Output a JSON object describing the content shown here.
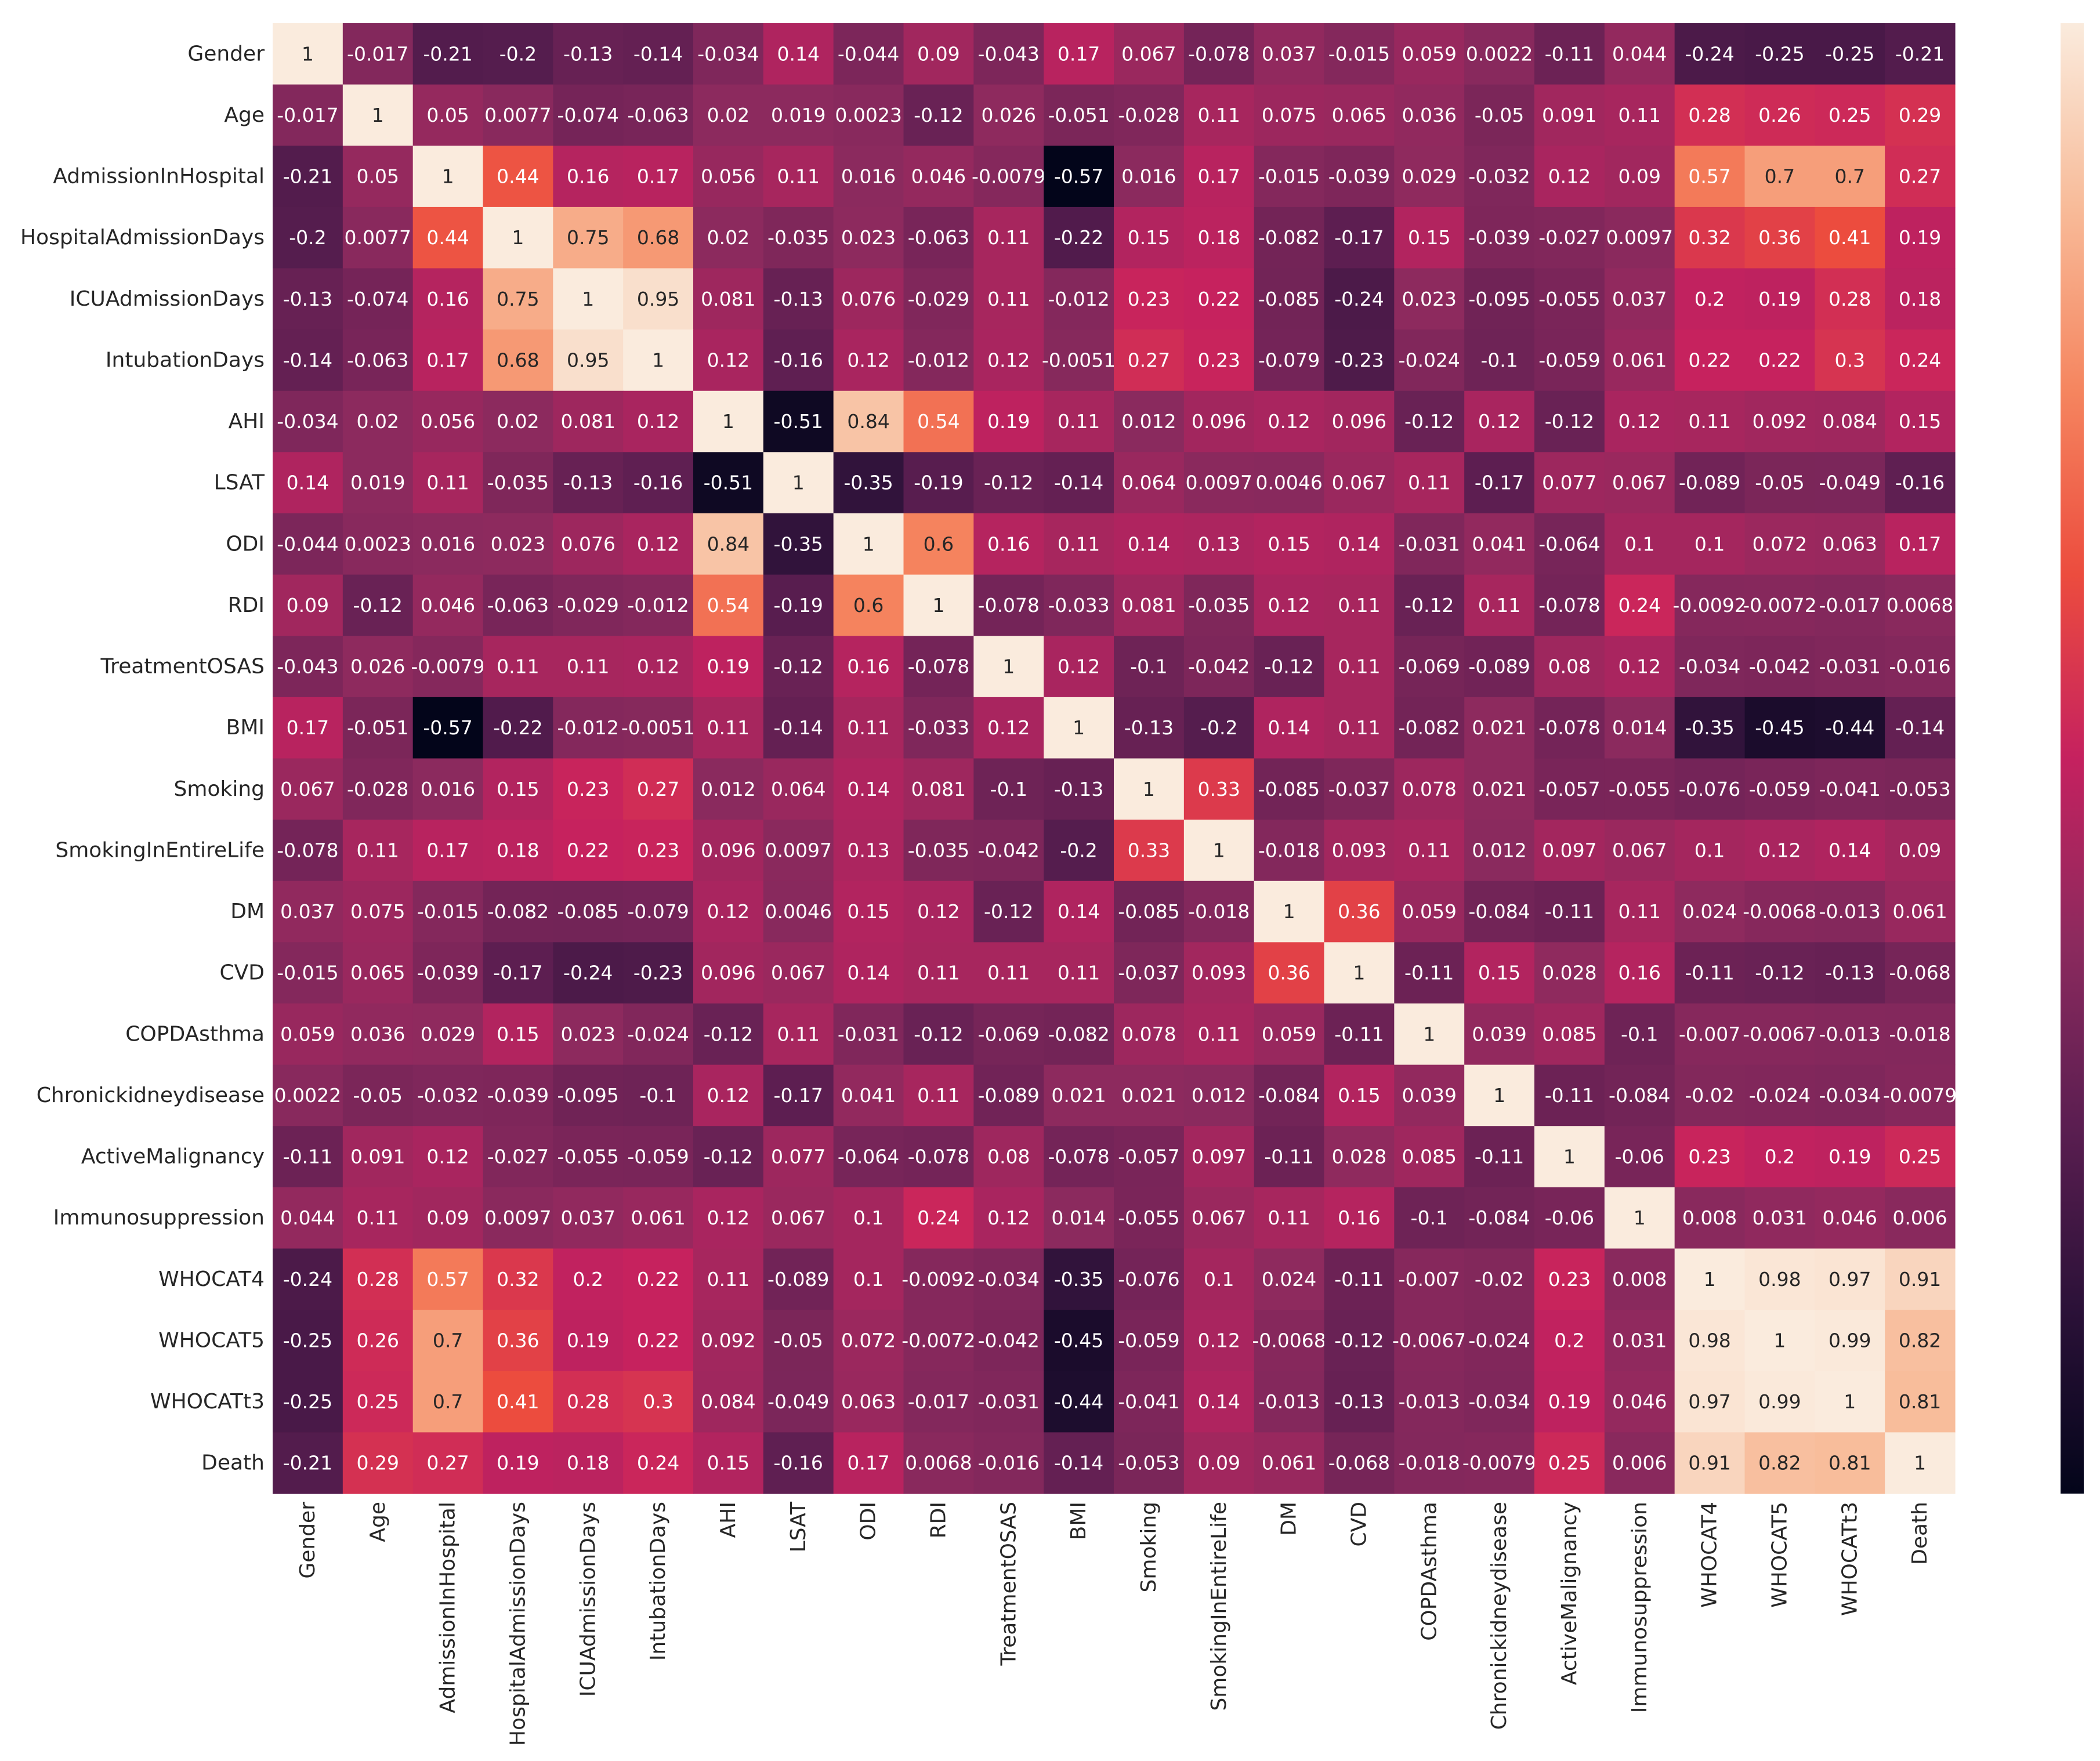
{
  "chart_data": {
    "type": "heatmap",
    "title": "",
    "xlabel": "",
    "ylabel": "",
    "colormap": "rocket",
    "vmin": -0.57,
    "vmax": 1,
    "labels": [
      "Gender",
      "Age",
      "AdmissionInHospital",
      "HospitalAdmissionDays",
      "ICUAdmissionDays",
      "IntubationDays",
      "AHI",
      "LSAT",
      "ODI",
      "RDI",
      "TreatmentOSAS",
      "BMI",
      "Smoking",
      "SmokingInEntireLife",
      "DM",
      "CVD",
      "COPDAsthma",
      "Chronickidneydisease",
      "ActiveMalignancy",
      "Immunosuppression",
      "WHOCAT4",
      "WHOCAT5",
      "WHOCATt3",
      "Death"
    ],
    "values": [
      [
        "1",
        "-0.017",
        "-0.21",
        "-0.2",
        "-0.13",
        "-0.14",
        "-0.034",
        "0.14",
        "-0.044",
        "0.09",
        "-0.043",
        "0.17",
        "0.067",
        "-0.078",
        "0.037",
        "-0.015",
        "0.059",
        "0.0022",
        "-0.11",
        "0.044",
        "-0.24",
        "-0.25",
        "-0.25",
        "-0.21"
      ],
      [
        "-0.017",
        "1",
        "0.05",
        "0.0077",
        "-0.074",
        "-0.063",
        "0.02",
        "0.019",
        "0.0023",
        "-0.12",
        "0.026",
        "-0.051",
        "-0.028",
        "0.11",
        "0.075",
        "0.065",
        "0.036",
        "-0.05",
        "0.091",
        "0.11",
        "0.28",
        "0.26",
        "0.25",
        "0.29"
      ],
      [
        "-0.21",
        "0.05",
        "1",
        "0.44",
        "0.16",
        "0.17",
        "0.056",
        "0.11",
        "0.016",
        "0.046",
        "-0.0079",
        "-0.57",
        "0.016",
        "0.17",
        "-0.015",
        "-0.039",
        "0.029",
        "-0.032",
        "0.12",
        "0.09",
        "0.57",
        "0.7",
        "0.7",
        "0.27"
      ],
      [
        "-0.2",
        "0.0077",
        "0.44",
        "1",
        "0.75",
        "0.68",
        "0.02",
        "-0.035",
        "0.023",
        "-0.063",
        "0.11",
        "-0.22",
        "0.15",
        "0.18",
        "-0.082",
        "-0.17",
        "0.15",
        "-0.039",
        "-0.027",
        "0.0097",
        "0.32",
        "0.36",
        "0.41",
        "0.19"
      ],
      [
        "-0.13",
        "-0.074",
        "0.16",
        "0.75",
        "1",
        "0.95",
        "0.081",
        "-0.13",
        "0.076",
        "-0.029",
        "0.11",
        "-0.012",
        "0.23",
        "0.22",
        "-0.085",
        "-0.24",
        "0.023",
        "-0.095",
        "-0.055",
        "0.037",
        "0.2",
        "0.19",
        "0.28",
        "0.18"
      ],
      [
        "-0.14",
        "-0.063",
        "0.17",
        "0.68",
        "0.95",
        "1",
        "0.12",
        "-0.16",
        "0.12",
        "-0.012",
        "0.12",
        "-0.0051",
        "0.27",
        "0.23",
        "-0.079",
        "-0.23",
        "-0.024",
        "-0.1",
        "-0.059",
        "0.061",
        "0.22",
        "0.22",
        "0.3",
        "0.24"
      ],
      [
        "-0.034",
        "0.02",
        "0.056",
        "0.02",
        "0.081",
        "0.12",
        "1",
        "-0.51",
        "0.84",
        "0.54",
        "0.19",
        "0.11",
        "0.012",
        "0.096",
        "0.12",
        "0.096",
        "-0.12",
        "0.12",
        "-0.12",
        "0.12",
        "0.11",
        "0.092",
        "0.084",
        "0.15"
      ],
      [
        "0.14",
        "0.019",
        "0.11",
        "-0.035",
        "-0.13",
        "-0.16",
        "-0.51",
        "1",
        "-0.35",
        "-0.19",
        "-0.12",
        "-0.14",
        "0.064",
        "0.0097",
        "0.0046",
        "0.067",
        "0.11",
        "-0.17",
        "0.077",
        "0.067",
        "-0.089",
        "-0.05",
        "-0.049",
        "-0.16"
      ],
      [
        "-0.044",
        "0.0023",
        "0.016",
        "0.023",
        "0.076",
        "0.12",
        "0.84",
        "-0.35",
        "1",
        "0.6",
        "0.16",
        "0.11",
        "0.14",
        "0.13",
        "0.15",
        "0.14",
        "-0.031",
        "0.041",
        "-0.064",
        "0.1",
        "0.1",
        "0.072",
        "0.063",
        "0.17"
      ],
      [
        "0.09",
        "-0.12",
        "0.046",
        "-0.063",
        "-0.029",
        "-0.012",
        "0.54",
        "-0.19",
        "0.6",
        "1",
        "-0.078",
        "-0.033",
        "0.081",
        "-0.035",
        "0.12",
        "0.11",
        "-0.12",
        "0.11",
        "-0.078",
        "0.24",
        "-0.0092",
        "-0.0072",
        "-0.017",
        "0.0068"
      ],
      [
        "-0.043",
        "0.026",
        "-0.0079",
        "0.11",
        "0.11",
        "0.12",
        "0.19",
        "-0.12",
        "0.16",
        "-0.078",
        "1",
        "0.12",
        "-0.1",
        "-0.042",
        "-0.12",
        "0.11",
        "-0.069",
        "-0.089",
        "0.08",
        "0.12",
        "-0.034",
        "-0.042",
        "-0.031",
        "-0.016"
      ],
      [
        "0.17",
        "-0.051",
        "-0.57",
        "-0.22",
        "-0.012",
        "-0.0051",
        "0.11",
        "-0.14",
        "0.11",
        "-0.033",
        "0.12",
        "1",
        "-0.13",
        "-0.2",
        "0.14",
        "0.11",
        "-0.082",
        "0.021",
        "-0.078",
        "0.014",
        "-0.35",
        "-0.45",
        "-0.44",
        "-0.14"
      ],
      [
        "0.067",
        "-0.028",
        "0.016",
        "0.15",
        "0.23",
        "0.27",
        "0.012",
        "0.064",
        "0.14",
        "0.081",
        "-0.1",
        "-0.13",
        "1",
        "0.33",
        "-0.085",
        "-0.037",
        "0.078",
        "0.021",
        "-0.057",
        "-0.055",
        "-0.076",
        "-0.059",
        "-0.041",
        "-0.053"
      ],
      [
        "-0.078",
        "0.11",
        "0.17",
        "0.18",
        "0.22",
        "0.23",
        "0.096",
        "0.0097",
        "0.13",
        "-0.035",
        "-0.042",
        "-0.2",
        "0.33",
        "1",
        "-0.018",
        "0.093",
        "0.11",
        "0.012",
        "0.097",
        "0.067",
        "0.1",
        "0.12",
        "0.14",
        "0.09"
      ],
      [
        "0.037",
        "0.075",
        "-0.015",
        "-0.082",
        "-0.085",
        "-0.079",
        "0.12",
        "0.0046",
        "0.15",
        "0.12",
        "-0.12",
        "0.14",
        "-0.085",
        "-0.018",
        "1",
        "0.36",
        "0.059",
        "-0.084",
        "-0.11",
        "0.11",
        "0.024",
        "-0.0068",
        "-0.013",
        "0.061"
      ],
      [
        "-0.015",
        "0.065",
        "-0.039",
        "-0.17",
        "-0.24",
        "-0.23",
        "0.096",
        "0.067",
        "0.14",
        "0.11",
        "0.11",
        "0.11",
        "-0.037",
        "0.093",
        "0.36",
        "1",
        "-0.11",
        "0.15",
        "0.028",
        "0.16",
        "-0.11",
        "-0.12",
        "-0.13",
        "-0.068"
      ],
      [
        "0.059",
        "0.036",
        "0.029",
        "0.15",
        "0.023",
        "-0.024",
        "-0.12",
        "0.11",
        "-0.031",
        "-0.12",
        "-0.069",
        "-0.082",
        "0.078",
        "0.11",
        "0.059",
        "-0.11",
        "1",
        "0.039",
        "0.085",
        "-0.1",
        "-0.007",
        "-0.0067",
        "-0.013",
        "-0.018"
      ],
      [
        "0.0022",
        "-0.05",
        "-0.032",
        "-0.039",
        "-0.095",
        "-0.1",
        "0.12",
        "-0.17",
        "0.041",
        "0.11",
        "-0.089",
        "0.021",
        "0.021",
        "0.012",
        "-0.084",
        "0.15",
        "0.039",
        "1",
        "-0.11",
        "-0.084",
        "-0.02",
        "-0.024",
        "-0.034",
        "-0.0079"
      ],
      [
        "-0.11",
        "0.091",
        "0.12",
        "-0.027",
        "-0.055",
        "-0.059",
        "-0.12",
        "0.077",
        "-0.064",
        "-0.078",
        "0.08",
        "-0.078",
        "-0.057",
        "0.097",
        "-0.11",
        "0.028",
        "0.085",
        "-0.11",
        "1",
        "-0.06",
        "0.23",
        "0.2",
        "0.19",
        "0.25"
      ],
      [
        "0.044",
        "0.11",
        "0.09",
        "0.0097",
        "0.037",
        "0.061",
        "0.12",
        "0.067",
        "0.1",
        "0.24",
        "0.12",
        "0.014",
        "-0.055",
        "0.067",
        "0.11",
        "0.16",
        "-0.1",
        "-0.084",
        "-0.06",
        "1",
        "0.008",
        "0.031",
        "0.046",
        "0.006"
      ],
      [
        "-0.24",
        "0.28",
        "0.57",
        "0.32",
        "0.2",
        "0.22",
        "0.11",
        "-0.089",
        "0.1",
        "-0.0092",
        "-0.034",
        "-0.35",
        "-0.076",
        "0.1",
        "0.024",
        "-0.11",
        "-0.007",
        "-0.02",
        "0.23",
        "0.008",
        "1",
        "0.98",
        "0.97",
        "0.91"
      ],
      [
        "-0.25",
        "0.26",
        "0.7",
        "0.36",
        "0.19",
        "0.22",
        "0.092",
        "-0.05",
        "0.072",
        "-0.0072",
        "-0.042",
        "-0.45",
        "-0.059",
        "0.12",
        "-0.0068",
        "-0.12",
        "-0.0067",
        "-0.024",
        "0.2",
        "0.031",
        "0.98",
        "1",
        "0.99",
        "0.82"
      ],
      [
        "-0.25",
        "0.25",
        "0.7",
        "0.41",
        "0.28",
        "0.3",
        "0.084",
        "-0.049",
        "0.063",
        "-0.017",
        "-0.031",
        "-0.44",
        "-0.041",
        "0.14",
        "-0.013",
        "-0.13",
        "-0.013",
        "-0.034",
        "0.19",
        "0.046",
        "0.97",
        "0.99",
        "1",
        "0.81"
      ],
      [
        "-0.21",
        "0.29",
        "0.27",
        "0.19",
        "0.18",
        "0.24",
        "0.15",
        "-0.16",
        "0.17",
        "0.0068",
        "-0.016",
        "-0.14",
        "-0.053",
        "0.09",
        "0.061",
        "-0.068",
        "-0.018",
        "-0.0079",
        "0.25",
        "0.006",
        "0.91",
        "0.82",
        "0.81",
        "1"
      ]
    ],
    "colorbar": {
      "ticks": [],
      "range": [
        -0.57,
        1
      ]
    }
  }
}
